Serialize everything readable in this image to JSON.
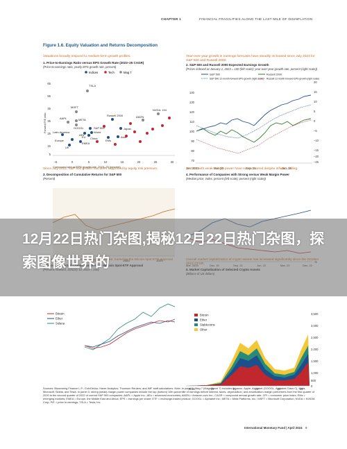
{
  "running_head": {
    "chapter": "CHAPTER 1",
    "title": "FINANCIAL FRAGILITIES ALONG THE LAST MILE OF DISINFLATION"
  },
  "figure_title": "Figure 1.6. Equity Valuation and Returns Decomposition",
  "banner": {
    "text": "12月22日热门杂图,揭秘12月22日热门杂图，探索图像世界的"
  },
  "panels": {
    "p1": {
      "lead": "Valuations broadly respond to medium-term growth profiles.",
      "title": "1. Price-to-Earnings Ratio versus EPS Growth Rate (2023–25 CAGR)",
      "subtitle": "(Price-to-earnings ratio, yearly EPS growth rate, percent)",
      "legend": [
        "Indices",
        "Tech",
        "Mag 7",
        "TSLA"
      ],
      "ylabel": "Forward P/E ratio",
      "xlabel": "Compound annual EPS growth rate, 2023–25 (percent)",
      "yticks": [
        "65",
        "55",
        "45",
        "35",
        "25",
        "15",
        "5"
      ],
      "xticks": [
        "–5",
        "0",
        "5",
        "10",
        "15",
        "20",
        "25",
        "30"
      ],
      "labels": [
        "TSLA",
        "MSFT",
        "AAPL",
        "META",
        "GOOGL",
        "S&P 500",
        "Russell 2000",
        "NVDA: 194",
        "AMZN",
        "Japan",
        "Latin America",
        "EU",
        "AEs",
        "China",
        "World",
        "EMs",
        "Asia",
        "Europe",
        "EMEA",
        "UK"
      ]
    },
    "p2": {
      "lead": "Year-over-year growth in earnings forecasts have steadily increased since July 2023 for S&P 500 and Russell 2000.",
      "title": "2. S&P 500 and Russell 2000 Expected Earnings Growth",
      "subtitle": "(Prices indexed at January 1, 2023 = 100 (left scale); year-over-year growth rate, percent (right scale))",
      "legend": [
        "S&P 500",
        "S&P 500 12-month forward EPS growth (right scale)",
        "Russell 2000",
        "Russell 12-month forward EPS growth (right scale)"
      ],
      "yticks_left": [
        "140",
        "130",
        "120",
        "110",
        "100",
        "90",
        "80",
        "70"
      ],
      "yticks_right": [
        "20",
        "15",
        "10",
        "5",
        "0",
        "–5",
        "–10",
        "–15",
        "–20",
        "–25"
      ],
      "xticks": [
        "Jan. 2023",
        "Mar. 23",
        "Sep. 23",
        "Jan. 24"
      ]
    },
    "p3": {
      "lead": "Since July 2022, S&P 500 growth has been supported by equity risk premium.",
      "title": "3. Decomposition of Cumulative Returns for S&P 500",
      "subtitle": "(Percent)",
      "yticks": [
        "–60"
      ],
      "xticks": [
        "2021",
        "2022",
        "2023",
        "2024"
      ]
    },
    "p4": {
      "lead": "Sectors with weak margin power have not recovered despite inflation falling.",
      "title": "4. Performance of Companies with Strong versus Weak Margin Power",
      "subtitle": "(Median price, index, percent (left scale); percent (right scale))",
      "yticks_right": [
        "–5"
      ],
      "xticks": [
        "Mar. 2020",
        "Dec. 20",
        "Sep. 21",
        "Jun. 22",
        "Mar. 23",
        "Dec. 23"
      ]
    },
    "p5": {
      "lead": "Bitcoin and other crypto-assets have recovered, fueled by the Bitcoin spot-ETF approval.",
      "title": "5. Price of Selected Crypto Assets since Bitcoin Spot-ETF Approval",
      "subtitle": "(Percent, indexed, January 10, 2024 = 100)",
      "legend": [
        "Bitcoin",
        "Ether",
        "Solana"
      ]
    },
    "p6": {
      "lead": "Overall market capitalization of crypto assets has increased significantly since the October 2023 GFSR.",
      "title": "6. Market Capitalization of Selected Crypto Assets",
      "subtitle": "(Billions of US dollars)",
      "legend": [
        "Bitcoin",
        "Ether",
        "Stablecoins",
        "Other"
      ],
      "yticks": [
        "3,500",
        "3,000",
        "2,500",
        "2,000",
        "1,500",
        "1,000",
        "500",
        "0"
      ],
      "xticks": [
        "2019",
        "20",
        "21",
        "22",
        "23",
        "24"
      ]
    }
  },
  "notes": "Sources: Bloomberg Finance L.P.; CoinGecko; Haver Analytics; Thomson Reuters; and IMF staff calculations. Note: In panel 1, Mag 7 (Magnificent 7) includes Amazon, Apple, Alphabet (GOOGL, Alphabet Class C), Meta, Microsoft, Nvidia, and Tesla. In panel 3, strong (weak) margin power companies include the top (bottom) 10th percentile of earnings before interest, taxes, depreciation, and amortization margin performers from the first quarter of 2020 to the second quarter of 2022 of current S&P 500 companies. AAPL = Apple Inc.; AEs = advanced economies; AMZN = Amazon.com Inc.; CAGR = compound annual growth rate; CPI = consumer price index; EMs = emerging markets; EMEA = Europe, the Middle East and Africa; EPS = earnings per share; ETF = exchange-traded product; GOOGL = Alphabet Inc.; META = Meta Platforms, Inc.; MSFT = Microsoft Corporation; NVDA = NVIDIA Corp; P/E = price to earnings; TSLA = Tesla, Inc.",
  "footer": {
    "org": "International Monetary Fund | April 2024",
    "page": "9"
  },
  "colors": {
    "lead": "#c46f21",
    "title_blue": "#1d5a8c",
    "indices": "#1d4f8c",
    "tech": "#c0282e",
    "mag7": "#888888",
    "bitcoin": "#c0282e",
    "ether": "#1d4f8c",
    "stablecoins": "#2a8a7a",
    "other": "#f2c838"
  }
}
